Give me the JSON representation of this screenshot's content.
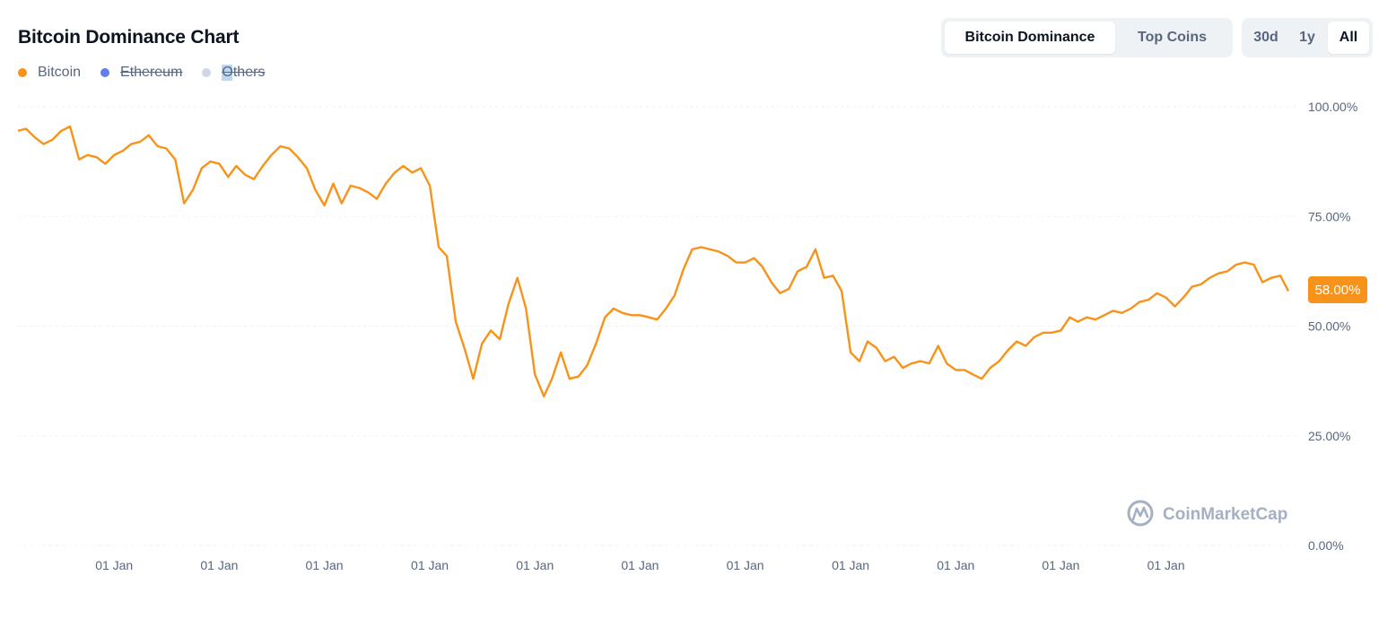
{
  "header": {
    "title": "Bitcoin Dominance Chart"
  },
  "legend": [
    {
      "label": "Bitcoin",
      "color": "#f7931a",
      "enabled": true
    },
    {
      "label": "Ethereum",
      "color": "#627eea",
      "enabled": false
    },
    {
      "label": "Others",
      "color": "#cfd6e4",
      "enabled": false
    }
  ],
  "view_toggle": {
    "options": [
      "Bitcoin Dominance",
      "Top Coins"
    ],
    "selected": "Bitcoin Dominance"
  },
  "range_toggle": {
    "options": [
      "30d",
      "1y",
      "All"
    ],
    "selected": "All"
  },
  "current_value_label": "58.00%",
  "watermark": {
    "text": "CoinMarketCap"
  },
  "chart_data": {
    "type": "line",
    "title": "Bitcoin Dominance Chart",
    "xlabel": "",
    "ylabel": "",
    "ylim": [
      0,
      100
    ],
    "yticks": [
      "0.00%",
      "25.00%",
      "50.00%",
      "75.00%",
      "100.00%"
    ],
    "ytick_values": [
      0,
      25,
      50,
      75,
      100
    ],
    "xticks": [
      "01 Jan",
      "01 Jan",
      "01 Jan",
      "01 Jan",
      "01 Jan",
      "01 Jan",
      "01 Jan",
      "01 Jan",
      "01 Jan",
      "01 Jan",
      "01 Jan"
    ],
    "xtick_dates": [
      "2014-01-01",
      "2015-01-01",
      "2016-01-01",
      "2017-01-01",
      "2018-01-01",
      "2019-01-01",
      "2020-01-01",
      "2021-01-01",
      "2022-01-01",
      "2023-01-01",
      "2024-01-01"
    ],
    "xlim": [
      "2013-02-01",
      "2025-04-01"
    ],
    "grid": true,
    "legend_position": "top-left",
    "series": [
      {
        "name": "Bitcoin",
        "color": "#f7931a",
        "points": [
          [
            "2013-02-01",
            94.5
          ],
          [
            "2013-03-01",
            95.0
          ],
          [
            "2013-04-01",
            93.0
          ],
          [
            "2013-05-01",
            91.5
          ],
          [
            "2013-06-01",
            92.5
          ],
          [
            "2013-07-01",
            94.5
          ],
          [
            "2013-08-01",
            95.5
          ],
          [
            "2013-09-01",
            88.0
          ],
          [
            "2013-10-01",
            89.0
          ],
          [
            "2013-11-01",
            88.5
          ],
          [
            "2013-12-01",
            87.0
          ],
          [
            "2014-01-01",
            89.0
          ],
          [
            "2014-02-01",
            90.0
          ],
          [
            "2014-03-01",
            91.5
          ],
          [
            "2014-04-01",
            92.0
          ],
          [
            "2014-05-01",
            93.5
          ],
          [
            "2014-06-01",
            91.0
          ],
          [
            "2014-07-01",
            90.5
          ],
          [
            "2014-08-01",
            88.0
          ],
          [
            "2014-09-01",
            78.0
          ],
          [
            "2014-10-01",
            81.0
          ],
          [
            "2014-11-01",
            86.0
          ],
          [
            "2014-12-01",
            87.5
          ],
          [
            "2015-01-01",
            87.0
          ],
          [
            "2015-02-01",
            84.0
          ],
          [
            "2015-03-01",
            86.5
          ],
          [
            "2015-04-01",
            84.5
          ],
          [
            "2015-05-01",
            83.5
          ],
          [
            "2015-06-01",
            86.5
          ],
          [
            "2015-07-01",
            89.0
          ],
          [
            "2015-08-01",
            91.0
          ],
          [
            "2015-09-01",
            90.5
          ],
          [
            "2015-10-01",
            88.5
          ],
          [
            "2015-11-01",
            86.0
          ],
          [
            "2015-12-01",
            81.0
          ],
          [
            "2016-01-01",
            77.5
          ],
          [
            "2016-02-01",
            82.5
          ],
          [
            "2016-03-01",
            78.0
          ],
          [
            "2016-04-01",
            82.0
          ],
          [
            "2016-05-01",
            81.5
          ],
          [
            "2016-06-01",
            80.5
          ],
          [
            "2016-07-01",
            79.0
          ],
          [
            "2016-08-01",
            82.5
          ],
          [
            "2016-09-01",
            85.0
          ],
          [
            "2016-10-01",
            86.5
          ],
          [
            "2016-11-01",
            85.0
          ],
          [
            "2016-12-01",
            86.0
          ],
          [
            "2017-01-01",
            82.0
          ],
          [
            "2017-02-01",
            68.0
          ],
          [
            "2017-03-01",
            66.0
          ],
          [
            "2017-04-01",
            51.0
          ],
          [
            "2017-05-01",
            45.0
          ],
          [
            "2017-06-01",
            38.0
          ],
          [
            "2017-07-01",
            46.0
          ],
          [
            "2017-08-01",
            49.0
          ],
          [
            "2017-09-01",
            47.0
          ],
          [
            "2017-10-01",
            55.0
          ],
          [
            "2017-11-01",
            61.0
          ],
          [
            "2017-12-01",
            54.0
          ],
          [
            "2018-01-01",
            39.0
          ],
          [
            "2018-02-01",
            34.0
          ],
          [
            "2018-03-01",
            38.0
          ],
          [
            "2018-04-01",
            44.0
          ],
          [
            "2018-05-01",
            38.0
          ],
          [
            "2018-06-01",
            38.5
          ],
          [
            "2018-07-01",
            41.0
          ],
          [
            "2018-08-01",
            46.0
          ],
          [
            "2018-09-01",
            52.0
          ],
          [
            "2018-10-01",
            54.0
          ],
          [
            "2018-11-01",
            53.0
          ],
          [
            "2018-12-01",
            52.5
          ],
          [
            "2019-01-01",
            52.5
          ],
          [
            "2019-02-01",
            52.0
          ],
          [
            "2019-03-01",
            51.5
          ],
          [
            "2019-04-01",
            54.0
          ],
          [
            "2019-05-01",
            57.0
          ],
          [
            "2019-06-01",
            63.0
          ],
          [
            "2019-07-01",
            67.5
          ],
          [
            "2019-08-01",
            68.0
          ],
          [
            "2019-09-01",
            67.5
          ],
          [
            "2019-10-01",
            67.0
          ],
          [
            "2019-11-01",
            66.0
          ],
          [
            "2019-12-01",
            64.5
          ],
          [
            "2020-01-01",
            64.5
          ],
          [
            "2020-02-01",
            65.5
          ],
          [
            "2020-03-01",
            63.5
          ],
          [
            "2020-04-01",
            60.0
          ],
          [
            "2020-05-01",
            57.5
          ],
          [
            "2020-06-01",
            58.5
          ],
          [
            "2020-07-01",
            62.5
          ],
          [
            "2020-08-01",
            63.5
          ],
          [
            "2020-09-01",
            67.5
          ],
          [
            "2020-10-01",
            61.0
          ],
          [
            "2020-11-01",
            61.5
          ],
          [
            "2020-12-01",
            58.0
          ],
          [
            "2021-01-01",
            44.0
          ],
          [
            "2021-02-01",
            42.0
          ],
          [
            "2021-03-01",
            46.5
          ],
          [
            "2021-04-01",
            45.0
          ],
          [
            "2021-05-01",
            42.0
          ],
          [
            "2021-06-01",
            43.0
          ],
          [
            "2021-07-01",
            40.5
          ],
          [
            "2021-08-01",
            41.5
          ],
          [
            "2021-09-01",
            42.0
          ],
          [
            "2021-10-01",
            41.5
          ],
          [
            "2021-11-01",
            45.5
          ],
          [
            "2021-12-01",
            41.5
          ],
          [
            "2022-01-01",
            40.0
          ],
          [
            "2022-02-01",
            40.0
          ],
          [
            "2022-03-01",
            39.0
          ],
          [
            "2022-04-01",
            38.0
          ],
          [
            "2022-05-01",
            40.5
          ],
          [
            "2022-06-01",
            42.0
          ],
          [
            "2022-07-01",
            44.5
          ],
          [
            "2022-08-01",
            46.5
          ],
          [
            "2022-09-01",
            45.5
          ],
          [
            "2022-10-01",
            47.5
          ],
          [
            "2022-11-01",
            48.5
          ],
          [
            "2022-12-01",
            48.5
          ],
          [
            "2023-01-01",
            49.0
          ],
          [
            "2023-02-01",
            52.0
          ],
          [
            "2023-03-01",
            51.0
          ],
          [
            "2023-04-01",
            52.0
          ],
          [
            "2023-05-01",
            51.5
          ],
          [
            "2023-06-01",
            52.5
          ],
          [
            "2023-07-01",
            53.5
          ],
          [
            "2023-08-01",
            53.0
          ],
          [
            "2023-09-01",
            54.0
          ],
          [
            "2023-10-01",
            55.5
          ],
          [
            "2023-11-01",
            56.0
          ],
          [
            "2023-12-01",
            57.5
          ],
          [
            "2024-01-01",
            56.5
          ],
          [
            "2024-02-01",
            54.5
          ],
          [
            "2024-03-01",
            56.5
          ],
          [
            "2024-04-01",
            59.0
          ],
          [
            "2024-05-01",
            59.5
          ],
          [
            "2024-06-01",
            61.0
          ],
          [
            "2024-07-01",
            62.0
          ],
          [
            "2024-08-01",
            62.5
          ],
          [
            "2024-09-01",
            64.0
          ],
          [
            "2024-10-01",
            64.5
          ],
          [
            "2024-11-01",
            64.0
          ],
          [
            "2024-12-01",
            60.0
          ],
          [
            "2025-01-01",
            61.0
          ],
          [
            "2025-02-01",
            61.5
          ],
          [
            "2025-03-01",
            58.0
          ]
        ]
      }
    ]
  }
}
